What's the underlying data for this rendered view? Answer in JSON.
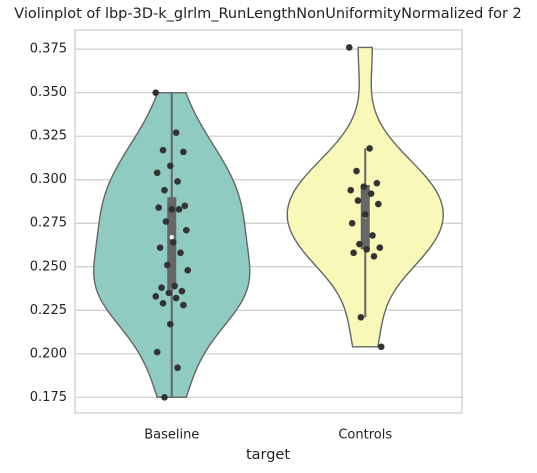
{
  "chart_data": {
    "type": "violin",
    "title": "Violinplot of lbp-3D-k_glrlm_RunLengthNonUniformityNormalized for 2",
    "x_label": "target",
    "categories": [
      "Baseline",
      "Controls"
    ],
    "series": [
      {
        "name": "Baseline",
        "color": "#8fcbc0",
        "values": [
          0.35,
          0.327,
          0.317,
          0.316,
          0.308,
          0.304,
          0.299,
          0.294,
          0.285,
          0.283,
          0.284,
          0.283,
          0.276,
          0.271,
          0.264,
          0.261,
          0.258,
          0.251,
          0.248,
          0.239,
          0.238,
          0.236,
          0.235,
          0.233,
          0.232,
          0.229,
          0.228,
          0.217,
          0.201,
          0.192,
          0.175
        ],
        "box": {
          "whisker_low": 0.175,
          "q1": 0.237,
          "median": 0.267,
          "q3": 0.29,
          "whisker_high": 0.35
        }
      },
      {
        "name": "Controls",
        "color": "#f8f8b9",
        "values": [
          0.376,
          0.318,
          0.305,
          0.298,
          0.296,
          0.294,
          0.292,
          0.288,
          0.286,
          0.28,
          0.275,
          0.268,
          0.263,
          0.261,
          0.26,
          0.258,
          0.256,
          0.221,
          0.204
        ],
        "box": {
          "whisker_low": 0.221,
          "q1": 0.26,
          "median": 0.279,
          "q3": 0.297,
          "whisker_high": 0.318
        }
      }
    ],
    "ylim": [
      0.166,
      0.386
    ],
    "yticks": [
      0.175,
      {
        "value": 0.2,
        "label": "0.200"
      },
      0.225,
      {
        "value": 0.25,
        "label": "0.250"
      },
      0.275,
      {
        "value": 0.3,
        "label": "0.300"
      },
      0.325,
      {
        "value": 0.35,
        "label": "0.350"
      },
      0.375
    ],
    "grid": true
  }
}
